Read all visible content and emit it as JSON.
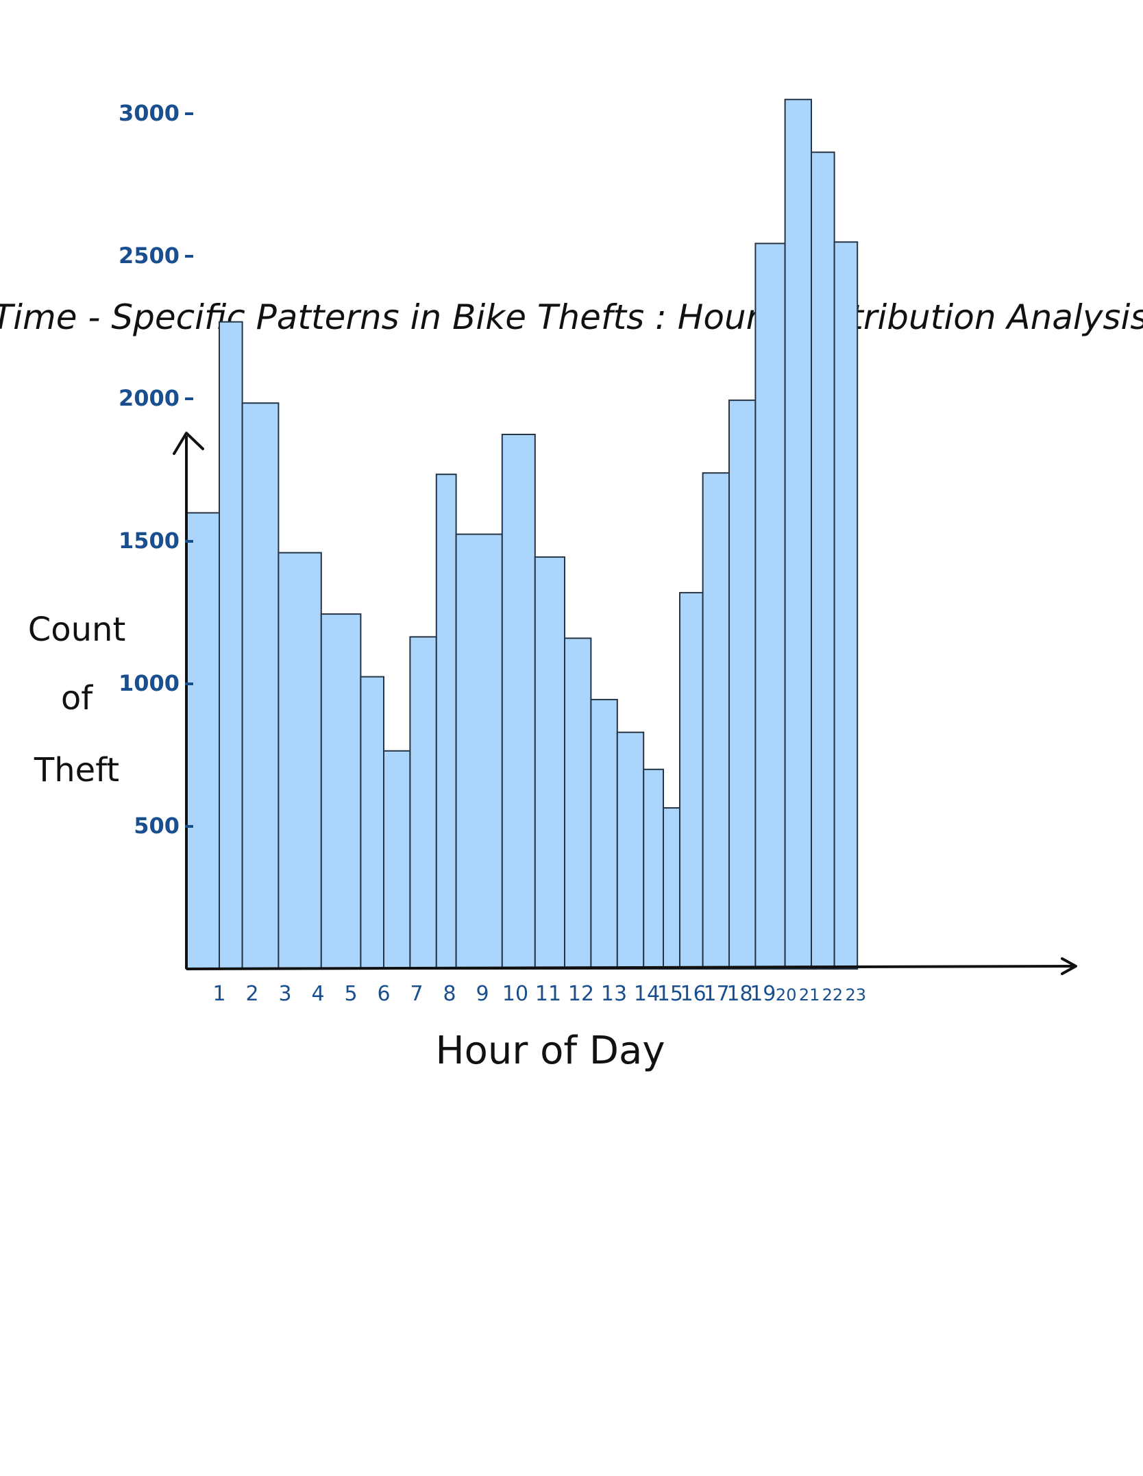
{
  "chart_data": {
    "type": "bar",
    "title": "Time - Specific Patterns in Bike Thefts : Hourly distribution Analysis",
    "xlabel": "Hour of Day",
    "ylabel": "Count of Theft",
    "ylim": [
      0,
      3350
    ],
    "grid": false,
    "legend": "none",
    "x_tick_labels": [
      "1",
      "2",
      "3",
      "4",
      "5",
      "6",
      "7",
      "8",
      "9",
      "10",
      "11",
      "12",
      "13",
      "14",
      "15",
      "16",
      "17",
      "18",
      "19",
      "20",
      "21",
      "22",
      "23"
    ],
    "y_tick_labels": [
      "500",
      "1000",
      "1500",
      "2000",
      "2500",
      "3000"
    ],
    "y_ticks": [
      500,
      1000,
      1500,
      2000,
      2500,
      3000
    ],
    "bins": [
      {
        "start": 0.0,
        "end": 1.0,
        "value": 1600
      },
      {
        "start": 1.0,
        "end": 1.7,
        "value": 2270
      },
      {
        "start": 1.7,
        "end": 2.8,
        "value": 1985
      },
      {
        "start": 2.8,
        "end": 4.1,
        "value": 1460
      },
      {
        "start": 4.1,
        "end": 5.3,
        "value": 1245
      },
      {
        "start": 5.3,
        "end": 6.0,
        "value": 1025
      },
      {
        "start": 6.0,
        "end": 6.8,
        "value": 765
      },
      {
        "start": 6.8,
        "end": 7.6,
        "value": 1165
      },
      {
        "start": 7.6,
        "end": 8.2,
        "value": 1735
      },
      {
        "start": 8.2,
        "end": 9.6,
        "value": 1525
      },
      {
        "start": 9.6,
        "end": 10.6,
        "value": 1875
      },
      {
        "start": 10.6,
        "end": 11.5,
        "value": 1445
      },
      {
        "start": 11.5,
        "end": 12.3,
        "value": 1160
      },
      {
        "start": 12.3,
        "end": 13.1,
        "value": 945
      },
      {
        "start": 13.1,
        "end": 13.9,
        "value": 830
      },
      {
        "start": 13.9,
        "end": 14.5,
        "value": 700
      },
      {
        "start": 14.5,
        "end": 15.0,
        "value": 565
      },
      {
        "start": 15.0,
        "end": 15.7,
        "value": 1320
      },
      {
        "start": 15.7,
        "end": 16.5,
        "value": 1740
      },
      {
        "start": 16.5,
        "end": 17.3,
        "value": 1995
      },
      {
        "start": 17.3,
        "end": 18.2,
        "value": 2545
      },
      {
        "start": 18.2,
        "end": 19.0,
        "value": 3050
      },
      {
        "start": 19.0,
        "end": 19.7,
        "value": 2865
      },
      {
        "start": 19.7,
        "end": 20.4,
        "value": 2550
      }
    ],
    "colors": {
      "bar_fill": "#acd5fb",
      "bar_stroke": "#263545",
      "axis": "#111111",
      "tick_label": "#1a4f8f",
      "text": "#111111"
    }
  }
}
